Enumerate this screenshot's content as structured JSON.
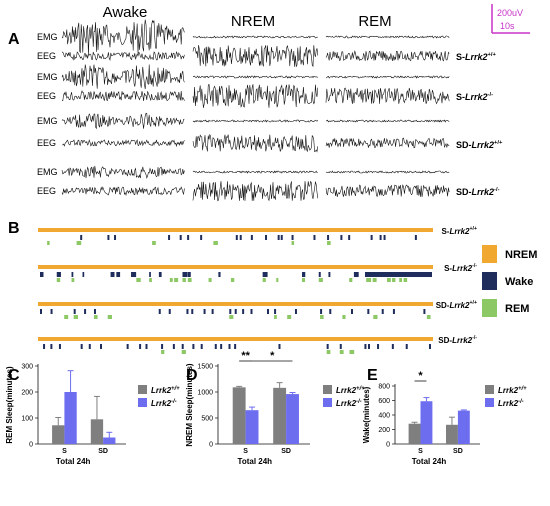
{
  "panel_a": {
    "letter": "A",
    "conditions": [
      "Awake",
      "NREM",
      "REM"
    ],
    "scale": {
      "voltage": "200uV",
      "time": "10s",
      "color": "#c832c8"
    },
    "rows": [
      {
        "group": "S-Lrrk2+/+",
        "prefix": "S-",
        "gene": "Lrrk2",
        "sup": "+/+",
        "signals": [
          "EMG",
          "EEG"
        ]
      },
      {
        "group": "S-Lrrk2-/-",
        "prefix": "S-",
        "gene": "Lrrk2",
        "sup": "-/-",
        "signals": [
          "EMG",
          "EEG"
        ]
      },
      {
        "group": "SD-Lrrk2+/+",
        "prefix": "SD-",
        "gene": "Lrrk2",
        "sup": "+/+",
        "signals": [
          "EMG",
          "EEG"
        ]
      },
      {
        "group": "SD-Lrrk2-/-",
        "prefix": "SD-",
        "gene": "Lrrk2",
        "sup": "-/-",
        "signals": [
          "EMG",
          "EEG"
        ]
      }
    ]
  },
  "panel_b": {
    "letter": "B",
    "rows": [
      {
        "prefix": "S-",
        "gene": "Lrrk2",
        "sup": "+/+"
      },
      {
        "prefix": "S-",
        "gene": "Lrrk2",
        "sup": "-/-"
      },
      {
        "prefix": "SD-",
        "gene": "Lrrk2",
        "sup": "+/+"
      },
      {
        "prefix": "SD-",
        "gene": "Lrrk2",
        "sup": "-/-"
      }
    ],
    "legend": [
      {
        "label": "NREM",
        "color": "#f0a830"
      },
      {
        "label": "Wake",
        "color": "#1f2d5c"
      },
      {
        "label": "REM",
        "color": "#8cc864"
      }
    ]
  },
  "chart_data": [
    {
      "panel": "C",
      "type": "bar",
      "ylabel": "REM Sleep(minutes)",
      "xlabel": "Total 24h",
      "categories": [
        "S",
        "SD"
      ],
      "ylim": [
        0,
        300
      ],
      "yticks": [
        0,
        100,
        200,
        300
      ],
      "series": [
        {
          "name": "Lrrk2+/+",
          "color": "#7f7f7f",
          "values": [
            72,
            95
          ],
          "errors": [
            30,
            88
          ]
        },
        {
          "name": "Lrrk2-/-",
          "color": "#6d6df0",
          "values": [
            200,
            25
          ],
          "errors": [
            82,
            20
          ]
        }
      ],
      "significance": []
    },
    {
      "panel": "D",
      "type": "bar",
      "ylabel": "NREM Sleep(minutes)",
      "xlabel": "Total 24h",
      "categories": [
        "S",
        "SD"
      ],
      "ylim": [
        0,
        1500
      ],
      "yticks": [
        0,
        500,
        1000,
        1500
      ],
      "series": [
        {
          "name": "Lrrk2+/+",
          "color": "#7f7f7f",
          "values": [
            1090,
            1080
          ],
          "errors": [
            18,
            100
          ]
        },
        {
          "name": "Lrrk2-/-",
          "color": "#6d6df0",
          "values": [
            650,
            960
          ],
          "errors": [
            60,
            30
          ]
        }
      ],
      "significance": [
        {
          "label": "**",
          "from": [
            0,
            0
          ],
          "to": [
            0,
            1
          ]
        },
        {
          "label": "*",
          "from": [
            0,
            1
          ],
          "to": [
            1,
            1
          ]
        }
      ]
    },
    {
      "panel": "E",
      "type": "bar",
      "ylabel": "Wake(minutes)",
      "xlabel": "Total 24h",
      "categories": [
        "S",
        "SD"
      ],
      "ylim": [
        0,
        800
      ],
      "yticks": [
        0,
        200,
        400,
        600,
        800
      ],
      "series": [
        {
          "name": "Lrrk2+/+",
          "color": "#7f7f7f",
          "values": [
            280,
            265
          ],
          "errors": [
            20,
            105
          ]
        },
        {
          "name": "Lrrk2-/-",
          "color": "#6d6df0",
          "values": [
            590,
            460
          ],
          "errors": [
            50,
            10
          ]
        }
      ],
      "significance": [
        {
          "label": "*",
          "from": [
            0,
            0
          ],
          "to": [
            0,
            1
          ]
        }
      ]
    }
  ]
}
